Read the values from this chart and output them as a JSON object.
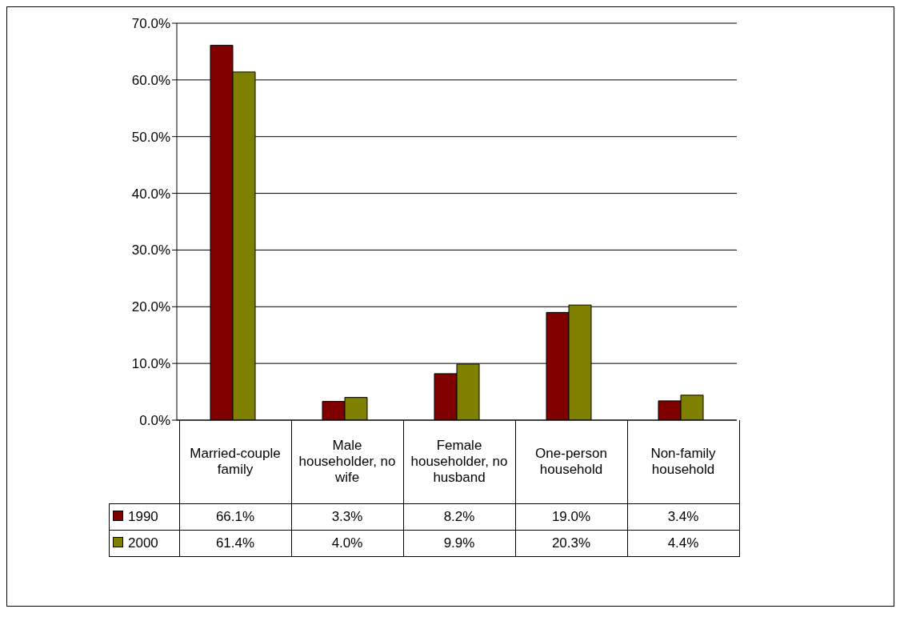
{
  "chart_data": {
    "type": "bar",
    "categories": [
      "Married-couple family",
      "Male householder, no wife",
      "Female householder, no husband",
      "One-person household",
      "Non-family household"
    ],
    "series": [
      {
        "name": "1990",
        "color": "#800000",
        "values": [
          66.1,
          3.3,
          8.2,
          19.0,
          3.4
        ],
        "value_labels": [
          "66.1%",
          "3.3%",
          "8.2%",
          "19.0%",
          "3.4%"
        ]
      },
      {
        "name": "2000",
        "color": "#808000",
        "values": [
          61.4,
          4.0,
          9.9,
          20.3,
          4.4
        ],
        "value_labels": [
          "61.4%",
          "4.0%",
          "9.9%",
          "20.3%",
          "4.4%"
        ]
      }
    ],
    "ylim": [
      0,
      70
    ],
    "yticks": [
      {
        "value": 0,
        "label": "0.0%"
      },
      {
        "value": 10,
        "label": "10.0%"
      },
      {
        "value": 20,
        "label": "20.0%"
      },
      {
        "value": 30,
        "label": "30.0%"
      },
      {
        "value": 40,
        "label": "40.0%"
      },
      {
        "value": 50,
        "label": "50.0%"
      },
      {
        "value": 60,
        "label": "60.0%"
      },
      {
        "value": 70,
        "label": "70.0%"
      }
    ],
    "grid": "y",
    "legend": "bottom"
  }
}
